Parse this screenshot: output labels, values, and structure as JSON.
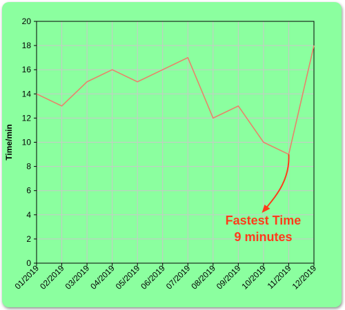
{
  "chart_data": {
    "type": "line",
    "title": "",
    "xlabel": "",
    "ylabel": "Time/min",
    "categories": [
      "01/2019",
      "02/2019",
      "03/2019",
      "04/2019",
      "05/2019",
      "06/2019",
      "07/2019",
      "08/2019",
      "09/2019",
      "10/2019",
      "11/2019",
      "12/2019"
    ],
    "series": [
      {
        "values": [
          14,
          13,
          15,
          16,
          15,
          16,
          17,
          12,
          13,
          10,
          9,
          18
        ]
      }
    ],
    "ylim": [
      0,
      20
    ],
    "yticks": [
      0,
      2,
      4,
      6,
      8,
      10,
      12,
      14,
      16,
      18,
      20
    ],
    "grid": true,
    "annotation": {
      "line1": "Fastest Time",
      "line2": "9 minutes",
      "target_category": "11/2019",
      "target_value": 9
    },
    "colors": {
      "background": "#8bff9f",
      "plot_background": "#8bff9f",
      "grid": "#c8c8c8",
      "line": "#e8846a",
      "annotation": "#ff3b1a"
    }
  }
}
